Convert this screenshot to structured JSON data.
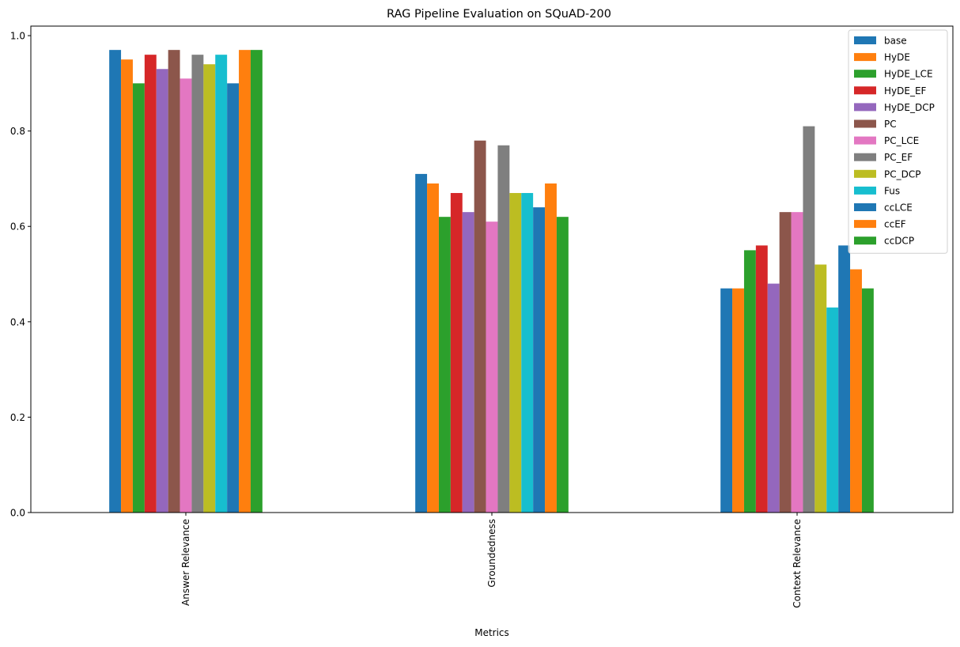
{
  "chart_data": {
    "type": "bar",
    "title": "RAG Pipeline Evaluation on SQuAD-200",
    "xlabel": "Metrics",
    "ylabel": "",
    "ylim": [
      0,
      1.02
    ],
    "yticks": [
      0.0,
      0.2,
      0.4,
      0.6,
      0.8,
      1.0
    ],
    "ytick_labels": [
      "0.0",
      "0.2",
      "0.4",
      "0.6",
      "0.8",
      "1.0"
    ],
    "categories": [
      "Answer Relevance",
      "Groundedness",
      "Context Relevance"
    ],
    "legend_position": "top-right",
    "grid": false,
    "series": [
      {
        "name": "base",
        "color": "#1f77b4",
        "values": [
          0.97,
          0.71,
          0.47
        ]
      },
      {
        "name": "HyDE",
        "color": "#ff7f0e",
        "values": [
          0.95,
          0.69,
          0.47
        ]
      },
      {
        "name": "HyDE_LCE",
        "color": "#2ca02c",
        "values": [
          0.9,
          0.62,
          0.55
        ]
      },
      {
        "name": "HyDE_EF",
        "color": "#d62728",
        "values": [
          0.96,
          0.67,
          0.56
        ]
      },
      {
        "name": "HyDE_DCP",
        "color": "#9467bd",
        "values": [
          0.93,
          0.63,
          0.48
        ]
      },
      {
        "name": "PC",
        "color": "#8c564b",
        "values": [
          0.97,
          0.78,
          0.63
        ]
      },
      {
        "name": "PC_LCE",
        "color": "#e377c2",
        "values": [
          0.91,
          0.61,
          0.63
        ]
      },
      {
        "name": "PC_EF",
        "color": "#7f7f7f",
        "values": [
          0.96,
          0.77,
          0.81
        ]
      },
      {
        "name": "PC_DCP",
        "color": "#bcbd22",
        "values": [
          0.94,
          0.67,
          0.52
        ]
      },
      {
        "name": "Fus",
        "color": "#17becf",
        "values": [
          0.96,
          0.67,
          0.43
        ]
      },
      {
        "name": "ccLCE",
        "color": "#1f77b4",
        "values": [
          0.9,
          0.64,
          0.56
        ]
      },
      {
        "name": "ccEF",
        "color": "#ff7f0e",
        "values": [
          0.97,
          0.69,
          0.51
        ]
      },
      {
        "name": "ccDCP",
        "color": "#2ca02c",
        "values": [
          0.97,
          0.62,
          0.47
        ]
      }
    ]
  }
}
